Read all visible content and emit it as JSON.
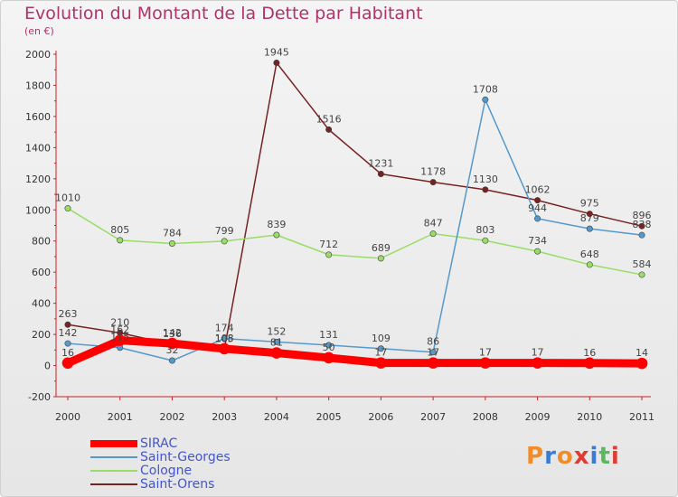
{
  "header": {
    "title": "Evolution du Montant de la Dette par Habitant",
    "subtitle": "(en €)"
  },
  "logo": {
    "text": "Proxiti",
    "colors": [
      "#f28c28",
      "#3a7bd5",
      "#f28c28",
      "#e03c31",
      "#3a7bd5",
      "#5cb85c",
      "#e03c31"
    ]
  },
  "chart_data": {
    "type": "line",
    "title": "Evolution du Montant de la Dette par Habitant",
    "subtitle": "(en €)",
    "xlabel": "",
    "ylabel": "",
    "x": [
      "2000",
      "2001",
      "2002",
      "2003",
      "2004",
      "2005",
      "2006",
      "2007",
      "2008",
      "2009",
      "2010",
      "2011"
    ],
    "ylim": [
      -200,
      2000
    ],
    "yticks": [
      "-200",
      "0",
      "200",
      "400",
      "600",
      "800",
      "1000",
      "1200",
      "1400",
      "1600",
      "1800",
      "2000"
    ],
    "grid": false,
    "legend_position": "bottom-left",
    "series": [
      {
        "name": "SIRAC",
        "color": "#ff0000",
        "width": 9,
        "values": [
          16,
          162,
          142,
          108,
          81,
          50,
          17,
          17,
          17,
          17,
          16,
          14
        ]
      },
      {
        "name": "Saint-Georges",
        "color": "#5599cc",
        "width": 1.5,
        "values": [
          142,
          115,
          32,
          174,
          152,
          131,
          109,
          86,
          1708,
          944,
          879,
          838
        ]
      },
      {
        "name": "Cologne",
        "color": "#99dd66",
        "width": 1.5,
        "values": [
          1010,
          805,
          784,
          799,
          839,
          712,
          689,
          847,
          803,
          734,
          648,
          584
        ]
      },
      {
        "name": "Saint-Orens",
        "color": "#772222",
        "width": 1.5,
        "values": [
          263,
          210,
          136,
          105,
          1945,
          1516,
          1231,
          1178,
          1130,
          1062,
          975,
          896
        ]
      }
    ]
  }
}
